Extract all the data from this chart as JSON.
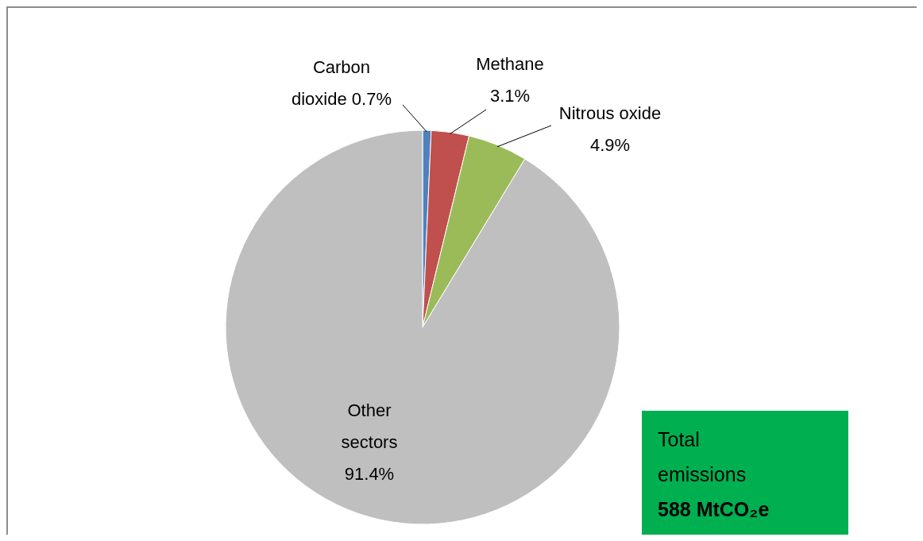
{
  "chart_data": {
    "type": "pie",
    "categories": [
      "Carbon dioxide",
      "Methane",
      "Nitrous oxide",
      "Other sectors"
    ],
    "values": [
      0.7,
      3.1,
      4.9,
      91.4
    ],
    "value_labels": [
      "0.7%",
      "3.1%",
      "4.9%",
      "91.4%"
    ],
    "colors": [
      "#4f81bd",
      "#c0504d",
      "#9bbb59",
      "#bfbfbf"
    ],
    "legend": false,
    "annotations": [
      "Total emissions",
      "588 MtCO₂e"
    ]
  }
}
